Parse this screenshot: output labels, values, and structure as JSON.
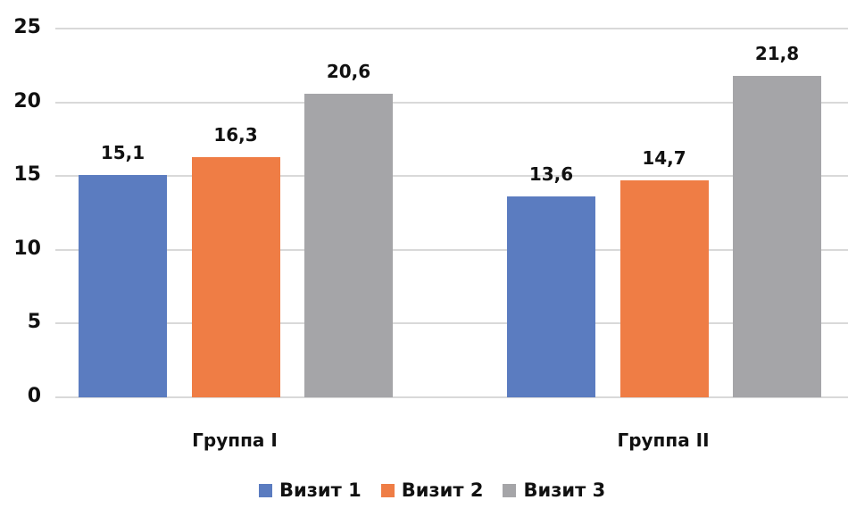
{
  "chart_data": {
    "type": "bar",
    "title": "",
    "xlabel": "",
    "ylabel": "",
    "categories": [
      "Группа I",
      "Группа II"
    ],
    "series": [
      {
        "name": "Визит 1",
        "values": [
          15.1,
          13.6
        ],
        "labels": [
          "15,1",
          "13,6"
        ],
        "color": "#5b7cc0"
      },
      {
        "name": "Визит 2",
        "values": [
          16.3,
          14.7
        ],
        "labels": [
          "16,3",
          "14,7"
        ],
        "color": "#ef7d45"
      },
      {
        "name": "Визит 3",
        "values": [
          20.6,
          21.8
        ],
        "labels": [
          "20,6",
          "21,8"
        ],
        "color": "#a5a5a8"
      }
    ],
    "ylim": [
      0,
      25
    ],
    "yticks": [
      "0",
      "5",
      "10",
      "15",
      "20",
      "25"
    ],
    "grid": true,
    "legend_position": "bottom"
  }
}
